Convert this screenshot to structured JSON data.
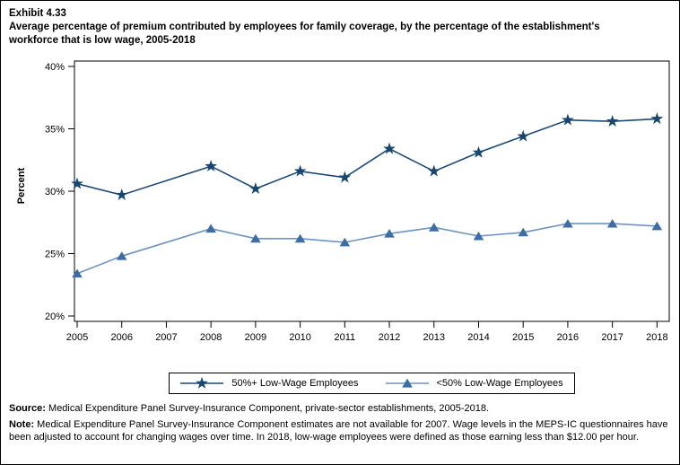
{
  "header": {
    "exhibit": "Exhibit 4.33",
    "title": "Average percentage of premium contributed by employees for family coverage, by the percentage of the establishment's workforce that is low wage, 2005-2018"
  },
  "chart_data": {
    "type": "line",
    "title": "Average percentage of premium contributed by employees for family coverage, by the percentage of the establishment's workforce that is low wage, 2005-2018",
    "categories": [
      "2005",
      "2006",
      "2007",
      "2008",
      "2009",
      "2010",
      "2011",
      "2012",
      "2013",
      "2014",
      "2015",
      "2016",
      "2017",
      "2018"
    ],
    "series": [
      {
        "name": "50%+ Low-Wage Employees",
        "marker": "star",
        "line_color": "#1b4a76",
        "marker_color": "#17466f",
        "values": [
          30.6,
          29.7,
          null,
          32.0,
          30.2,
          31.6,
          31.1,
          33.4,
          31.6,
          33.1,
          34.4,
          35.7,
          35.6,
          35.8
        ]
      },
      {
        "name": "<50% Low-Wage Employees",
        "marker": "triangle",
        "line_color": "#6d93bf",
        "marker_color": "#3c6ea5",
        "values": [
          23.4,
          24.8,
          null,
          27.0,
          26.2,
          26.2,
          25.9,
          26.6,
          27.1,
          26.4,
          26.7,
          27.4,
          27.4,
          27.2
        ]
      }
    ],
    "xlabel": "",
    "ylabel": "Percent",
    "ylim": [
      20,
      40
    ],
    "ytick_step": 5,
    "ytick_suffix": "%",
    "grid": false,
    "legend_position": "bottom",
    "notes": "No data shown for 2007; lines connect 2006 directly to 2008"
  },
  "footnotes": {
    "source_label": "Source:",
    "source_text": "Medical Expenditure Panel Survey-Insurance Component, private-sector establishments, 2005-2018.",
    "note_label": "Note:",
    "note_text": "Medical Expenditure Panel Survey-Insurance Component estimates are not available for 2007. Wage levels in the MEPS-IC questionnaires have been adjusted to account for changing wages over time.  In 2018, low-wage employees were defined as those earning less than $12.00 per hour."
  }
}
